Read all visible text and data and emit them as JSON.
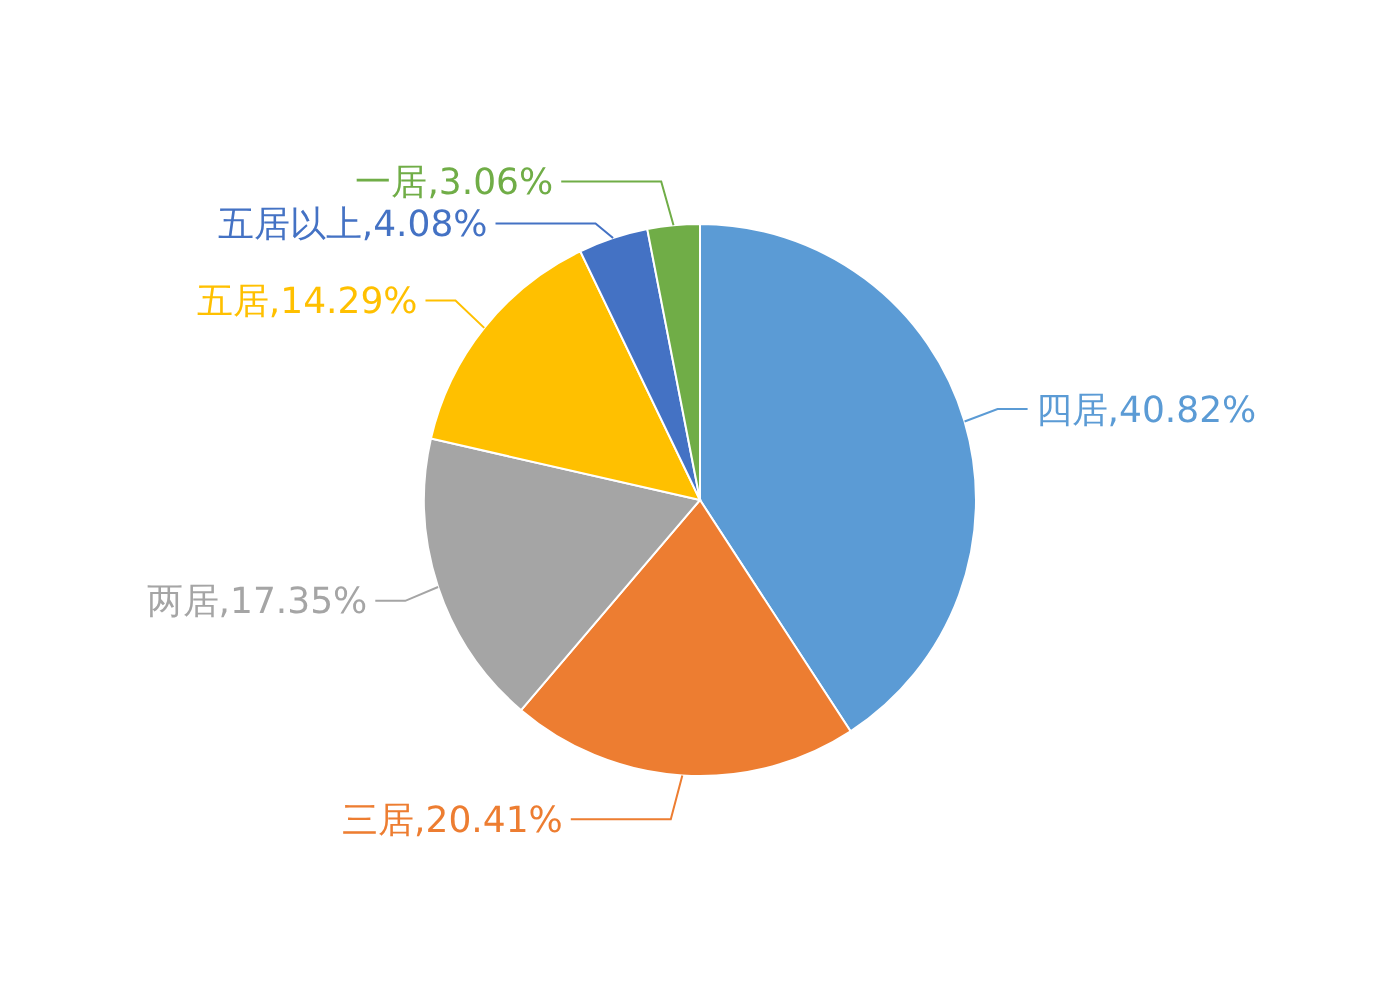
{
  "chart_data": {
    "type": "pie",
    "categories": [
      "四居",
      "三居",
      "两居",
      "五居",
      "五居以上",
      "一居"
    ],
    "values": [
      40.82,
      20.41,
      17.35,
      14.29,
      4.08,
      3.06
    ],
    "colors": [
      "#5b9bd5",
      "#ed7d31",
      "#a5a5a5",
      "#ffc000",
      "#4472c4",
      "#70ad47"
    ],
    "value_labels": [
      ",40.82%",
      ",20.41%",
      ",17.35%",
      ",14.29%",
      ",4.08%",
      ",3.06%"
    ]
  }
}
